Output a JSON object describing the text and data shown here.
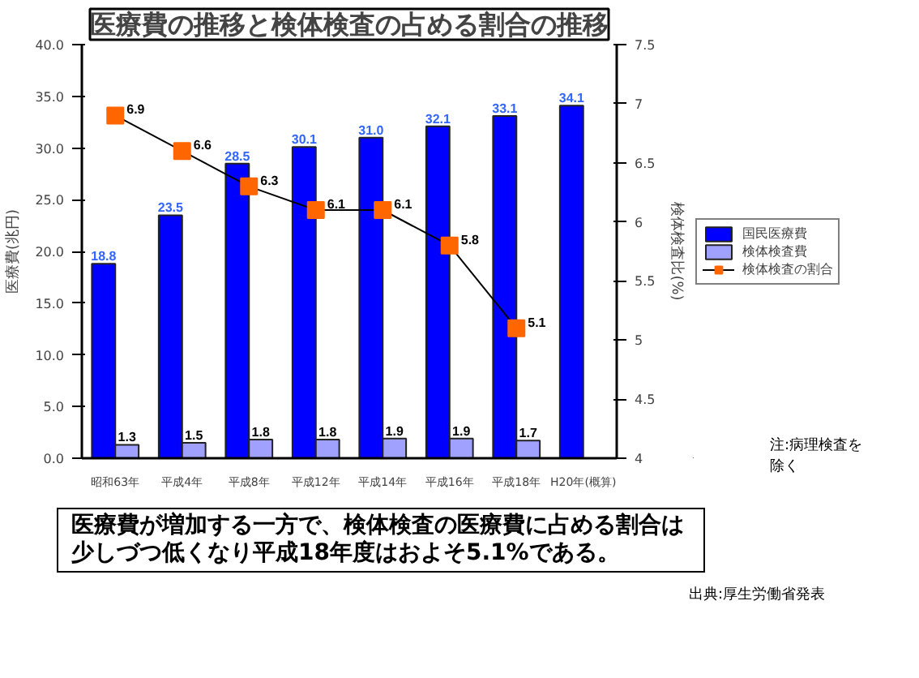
{
  "chart_data": {
    "type": "bar",
    "title": "医療費の推移と検体検査の占める割合の推移",
    "categories": [
      "昭和63年",
      "平成4年",
      "平成8年",
      "平成12年",
      "平成14年",
      "平成16年",
      "平成18年",
      "H20年(概算)"
    ],
    "series": [
      {
        "name": "国民医療費",
        "color": "#0000ff",
        "values": [
          18.8,
          23.5,
          28.5,
          30.1,
          31.0,
          32.1,
          33.1,
          34.1
        ],
        "value_labels": [
          "18.8",
          "23.5",
          "28.5",
          "30.1",
          "31.0",
          "32.1",
          "33.1",
          "34.1"
        ]
      },
      {
        "name": "検体検査費",
        "color": "#a0a0ff",
        "values": [
          1.3,
          1.5,
          1.8,
          1.8,
          1.9,
          1.9,
          1.7,
          null
        ],
        "value_labels": [
          "1.3",
          "1.5",
          "1.8",
          "1.8",
          "1.9",
          "1.9",
          "1.7",
          null
        ]
      },
      {
        "name": "検体検査の割合",
        "type": "line",
        "axis": "y2",
        "color": "#ff6600",
        "marker": "square",
        "values": [
          6.9,
          6.6,
          6.3,
          6.1,
          6.1,
          5.8,
          5.1,
          null
        ],
        "value_labels": [
          "6.9",
          "6.6",
          "6.3",
          "6.1",
          "6.1",
          "5.8",
          "5.1",
          null
        ]
      }
    ],
    "ylabel": "医療費(兆円)",
    "y2label": "検体検査比(%)",
    "ylim": [
      0,
      40
    ],
    "yticks": [
      {
        "value": 0,
        "label": "0.0"
      },
      {
        "value": 5,
        "label": "5.0"
      },
      {
        "value": 10,
        "label": "10.0"
      },
      {
        "value": 15,
        "label": "15.0"
      },
      {
        "value": 20,
        "label": "20.0"
      },
      {
        "value": 25,
        "label": "25.0"
      },
      {
        "value": 30,
        "label": "30.0"
      },
      {
        "value": 35,
        "label": "35.0"
      },
      {
        "value": 40,
        "label": "40.0"
      }
    ],
    "y2lim": [
      4,
      7.5
    ],
    "y2ticks": [
      4,
      4.5,
      5,
      5.5,
      6,
      6.5,
      7,
      7.5
    ],
    "legend": "right",
    "annotations": [
      "注:病理検査を除く",
      "医療費が増加する一方で、検体検査の医療費に占める割合は少しづつ低くなり平成18年度はおよそ5.1%である。",
      "出典:厚生労働省発表"
    ]
  }
}
